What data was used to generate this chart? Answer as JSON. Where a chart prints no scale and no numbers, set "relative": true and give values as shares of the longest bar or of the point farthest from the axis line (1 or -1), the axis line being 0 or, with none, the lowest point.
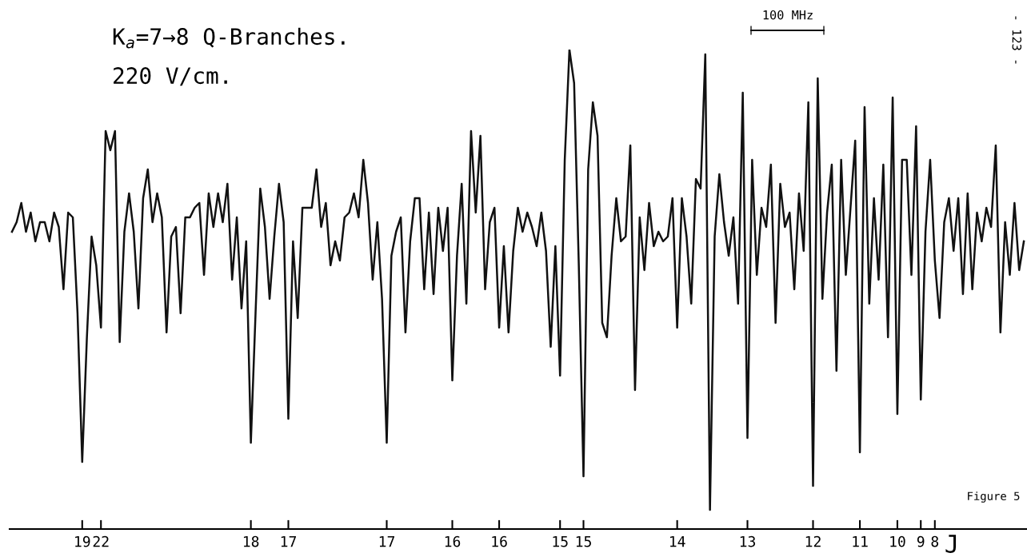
{
  "chart_data": {
    "type": "line",
    "title": "K$_{a}$=7→8 Q-Branches.",
    "subtitle": "220 V/cm.",
    "xlabel": "J",
    "relative": true,
    "color": "#111111",
    "grid": false,
    "legend": false,
    "marker": "none",
    "line_style": "solid",
    "annotations": [
      "100 MHz",
      "Figure 5",
      "- 123 -"
    ],
    "categories": [
      null,
      null,
      null,
      null,
      null,
      null,
      null,
      null,
      null,
      null,
      null,
      null,
      null,
      null,
      null,
      "19",
      null,
      null,
      null,
      "22",
      null,
      null,
      null,
      null,
      null,
      null,
      null,
      null,
      null,
      null,
      null,
      null,
      null,
      null,
      null,
      null,
      null,
      null,
      null,
      null,
      null,
      null,
      null,
      null,
      null,
      null,
      null,
      null,
      null,
      null,
      null,
      "18",
      null,
      null,
      null,
      null,
      null,
      null,
      null,
      "17",
      null,
      null,
      null,
      null,
      null,
      null,
      null,
      null,
      null,
      null,
      null,
      null,
      null,
      null,
      null,
      null,
      null,
      null,
      null,
      null,
      "17",
      null,
      null,
      null,
      null,
      null,
      null,
      null,
      null,
      null,
      null,
      null,
      null,
      null,
      "16",
      null,
      null,
      null,
      null,
      null,
      null,
      null,
      null,
      null,
      "16",
      null,
      null,
      null,
      null,
      null,
      null,
      null,
      null,
      null,
      null,
      null,
      null,
      "15",
      null,
      null,
      null,
      null,
      "15",
      null,
      null,
      null,
      null,
      null,
      null,
      null,
      null,
      null,
      null,
      null,
      null,
      null,
      null,
      null,
      null,
      null,
      null,
      null,
      "14",
      null,
      null,
      null,
      null,
      null,
      null,
      null,
      null,
      null,
      null,
      null,
      null,
      null,
      null,
      "13",
      null,
      null,
      null,
      null,
      null,
      null,
      null,
      null,
      null,
      null,
      null,
      null,
      null,
      "12",
      null,
      null,
      null,
      null,
      null,
      null,
      null,
      null,
      null,
      "11",
      null,
      null,
      null,
      null,
      null,
      null,
      null,
      "10",
      null,
      null,
      null,
      null,
      "9",
      null,
      null,
      "8",
      null,
      null,
      null,
      null,
      null,
      null,
      null,
      null,
      null,
      null,
      null,
      null,
      null,
      null,
      null,
      null,
      null,
      null,
      null
    ],
    "values": [
      0.62,
      0.64,
      0.68,
      0.62,
      0.66,
      0.6,
      0.64,
      0.64,
      0.6,
      0.66,
      0.63,
      0.5,
      0.66,
      0.65,
      0.45,
      0.14,
      0.4,
      0.61,
      0.55,
      0.42,
      0.83,
      0.79,
      0.83,
      0.39,
      0.62,
      0.7,
      0.62,
      0.46,
      0.69,
      0.75,
      0.64,
      0.7,
      0.65,
      0.41,
      0.61,
      0.63,
      0.45,
      0.65,
      0.65,
      0.67,
      0.68,
      0.53,
      0.7,
      0.63,
      0.7,
      0.64,
      0.72,
      0.52,
      0.65,
      0.46,
      0.6,
      0.18,
      0.45,
      0.71,
      0.63,
      0.48,
      0.61,
      0.72,
      0.64,
      0.23,
      0.6,
      0.44,
      0.67,
      0.67,
      0.67,
      0.75,
      0.63,
      0.68,
      0.55,
      0.6,
      0.56,
      0.65,
      0.66,
      0.7,
      0.65,
      0.77,
      0.68,
      0.52,
      0.64,
      0.48,
      0.18,
      0.57,
      0.62,
      0.65,
      0.41,
      0.6,
      0.69,
      0.69,
      0.5,
      0.66,
      0.49,
      0.67,
      0.58,
      0.67,
      0.31,
      0.57,
      0.72,
      0.47,
      0.83,
      0.66,
      0.82,
      0.5,
      0.64,
      0.67,
      0.42,
      0.59,
      0.41,
      0.58,
      0.67,
      0.62,
      0.66,
      0.63,
      0.59,
      0.66,
      0.58,
      0.38,
      0.59,
      0.32,
      0.77,
      1.0,
      0.93,
      0.55,
      0.11,
      0.75,
      0.89,
      0.82,
      0.43,
      0.4,
      0.57,
      0.69,
      0.6,
      0.61,
      0.8,
      0.29,
      0.65,
      0.54,
      0.68,
      0.59,
      0.62,
      0.6,
      0.61,
      0.69,
      0.42,
      0.69,
      0.61,
      0.47,
      0.73,
      0.71,
      0.99,
      0.04,
      0.61,
      0.74,
      0.64,
      0.57,
      0.65,
      0.47,
      0.91,
      0.19,
      0.77,
      0.53,
      0.67,
      0.63,
      0.76,
      0.43,
      0.72,
      0.63,
      0.66,
      0.5,
      0.7,
      0.58,
      0.89,
      0.09,
      0.94,
      0.48,
      0.66,
      0.76,
      0.33,
      0.77,
      0.53,
      0.67,
      0.81,
      0.16,
      0.88,
      0.47,
      0.69,
      0.52,
      0.76,
      0.4,
      0.9,
      0.24,
      0.77,
      0.77,
      0.53,
      0.84,
      0.27,
      0.62,
      0.77,
      0.56,
      0.44,
      0.64,
      0.69,
      0.58,
      0.69,
      0.49,
      0.7,
      0.5,
      0.66,
      0.6,
      0.67,
      0.63,
      0.8,
      0.41,
      0.64,
      0.53,
      0.68,
      0.54,
      0.6
    ]
  }
}
